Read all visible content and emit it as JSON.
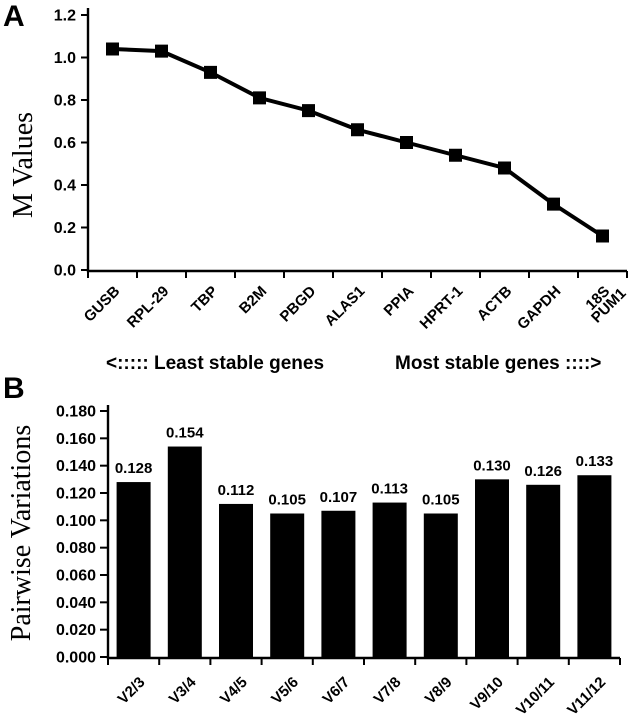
{
  "figure": {
    "background": "#ffffff",
    "ink_color": "#000000"
  },
  "panels": {
    "a": {
      "letter": "A"
    },
    "b": {
      "letter": "B"
    }
  },
  "chart_data": [
    {
      "type": "line",
      "title": "",
      "ylabel": "M Values",
      "xlabel": "",
      "categories": [
        "GUSB",
        "RPL-29",
        "TBP",
        "B2M",
        "PBGD",
        "ALAS1",
        "PPIA",
        "HPRT-1",
        "ACTB",
        "GAPDH",
        "18S\nPUM1"
      ],
      "values": [
        1.04,
        1.03,
        0.93,
        0.81,
        0.75,
        0.66,
        0.6,
        0.54,
        0.48,
        0.31,
        0.16
      ],
      "ylim": [
        0,
        1.2
      ],
      "yticks": [
        "0.0",
        "0.2",
        "0.4",
        "0.6",
        "0.8",
        "1.0",
        "1.2"
      ],
      "grid": "off",
      "legend": "none",
      "marker": "square",
      "line_color": "#000000",
      "annotations": [
        "<:::::  Least stable genes",
        "Most stable genes ::::>"
      ]
    },
    {
      "type": "bar",
      "title": "",
      "ylabel": "Pairwise Variations",
      "xlabel": "",
      "categories": [
        "V2/3",
        "V3/4",
        "V4/5",
        "V5/6",
        "V6/7",
        "V7/8",
        "V8/9",
        "V9/10",
        "V10/11",
        "V11/12"
      ],
      "values": [
        0.128,
        0.154,
        0.112,
        0.105,
        0.107,
        0.113,
        0.105,
        0.13,
        0.126,
        0.133
      ],
      "data_labels": [
        "0.128",
        "0.154",
        "0.112",
        "0.105",
        "0.107",
        "0.113",
        "0.105",
        "0.130",
        "0.126",
        "0.133"
      ],
      "ylim": [
        0,
        0.18
      ],
      "yticks": [
        "0.000",
        "0.020",
        "0.040",
        "0.060",
        "0.080",
        "0.100",
        "0.120",
        "0.140",
        "0.160",
        "0.180"
      ],
      "grid": "off",
      "legend": "none",
      "bar_color": "#000000"
    }
  ]
}
